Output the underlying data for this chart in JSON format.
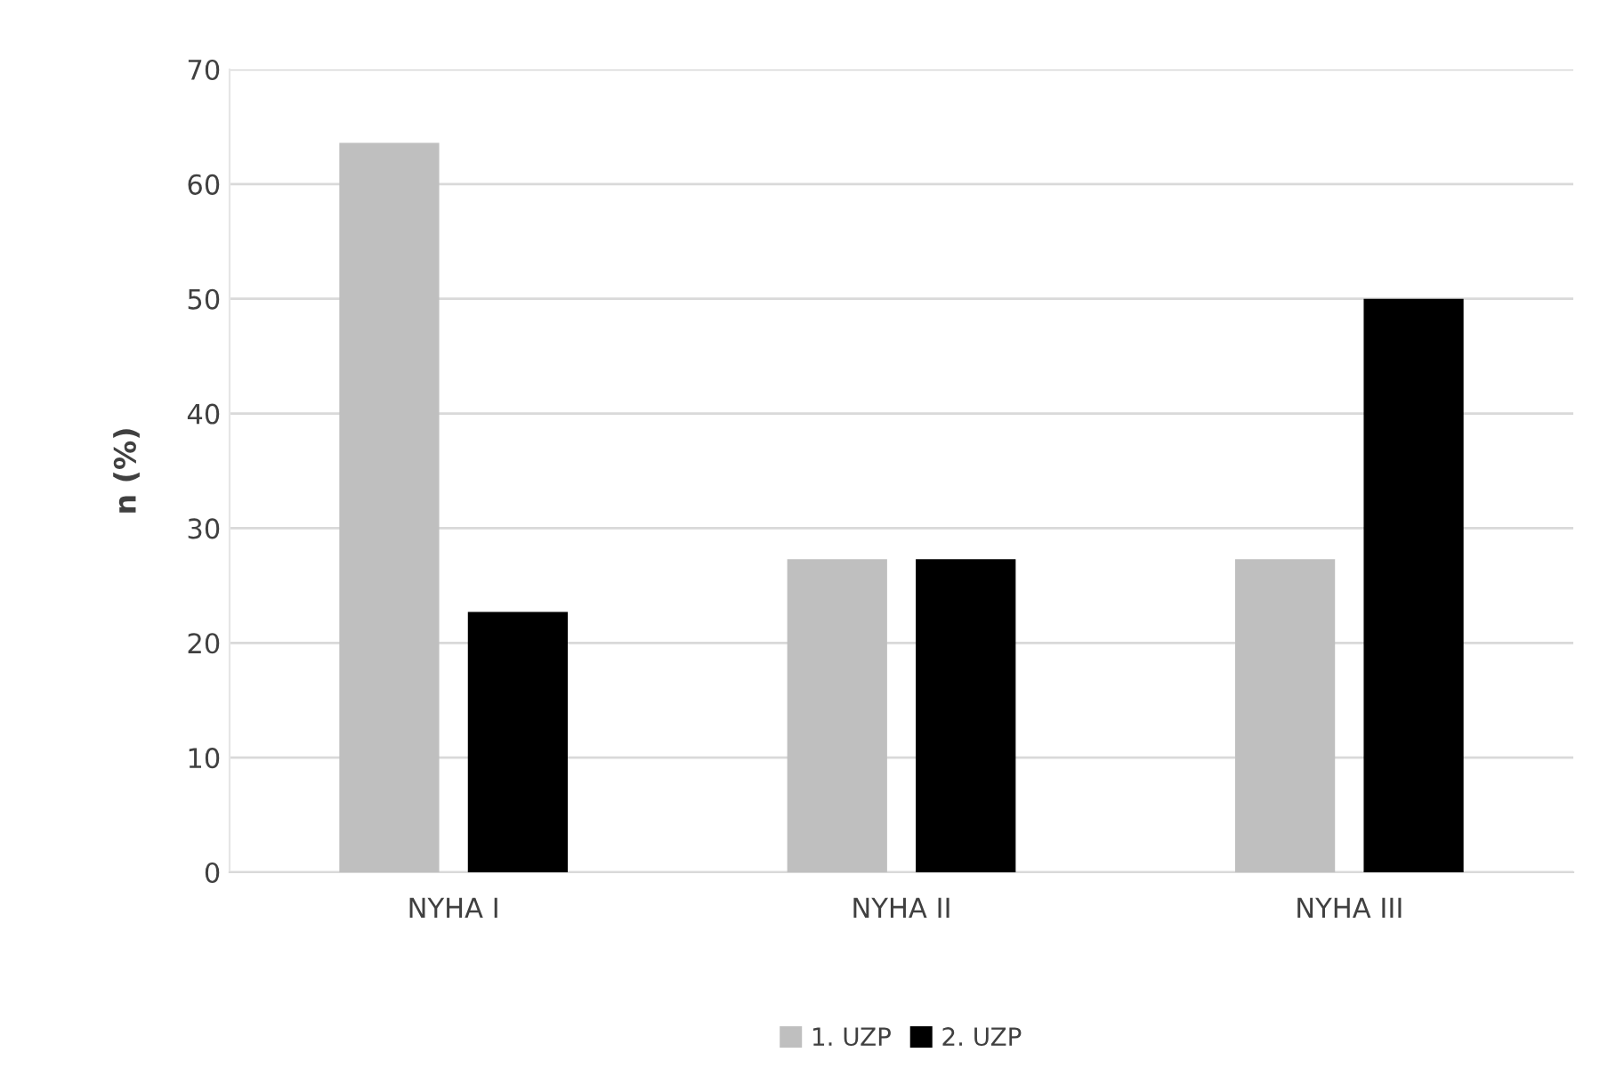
{
  "chart_data": {
    "type": "bar",
    "ylabel": "n (%)",
    "categories": [
      "NYHA I",
      "NYHA II",
      "NYHA III"
    ],
    "series": [
      {
        "name": "1. UZP",
        "color": "#bfbfbf",
        "values": [
          63.6,
          27.3,
          27.3
        ]
      },
      {
        "name": "2. UZP",
        "color": "#000000",
        "values": [
          22.7,
          27.3,
          50.0
        ]
      }
    ],
    "ylim": [
      0,
      70
    ],
    "yticks": [
      0,
      10,
      20,
      30,
      40,
      50,
      60,
      70
    ],
    "grid": "y",
    "legend": "bottom"
  }
}
